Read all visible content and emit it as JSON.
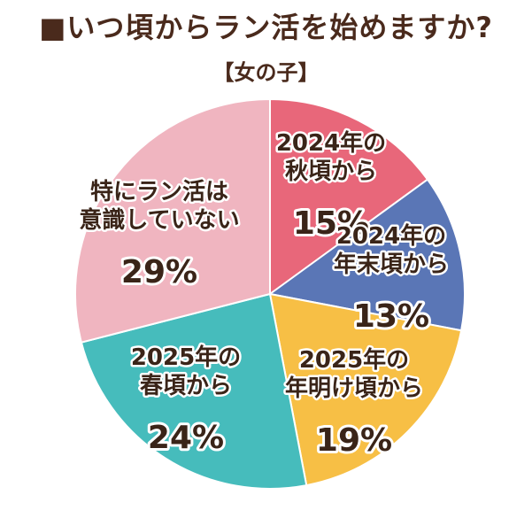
{
  "title": "■いつ頃からラン活を始めますか?",
  "subtitle": "【女の子】",
  "chart_data": {
    "type": "pie",
    "slices": [
      {
        "label_lines": [
          "2024年の",
          "秋頃から"
        ],
        "value": 15,
        "value_text": "15%",
        "color": "#e8677a"
      },
      {
        "label_lines": [
          "2024年の",
          "年末頃から"
        ],
        "value": 13,
        "value_text": "13%",
        "color": "#5a76b6"
      },
      {
        "label_lines": [
          "2025年の",
          "年明け頃から"
        ],
        "value": 19,
        "value_text": "19%",
        "color": "#f7bf45"
      },
      {
        "label_lines": [
          "2025年の",
          "春頃から"
        ],
        "value": 24,
        "value_text": "24%",
        "color": "#46bcbc"
      },
      {
        "label_lines": [
          "特にラン活は",
          "意識していない"
        ],
        "value": 29,
        "value_text": "29%",
        "color": "#f0b5c0"
      }
    ]
  }
}
